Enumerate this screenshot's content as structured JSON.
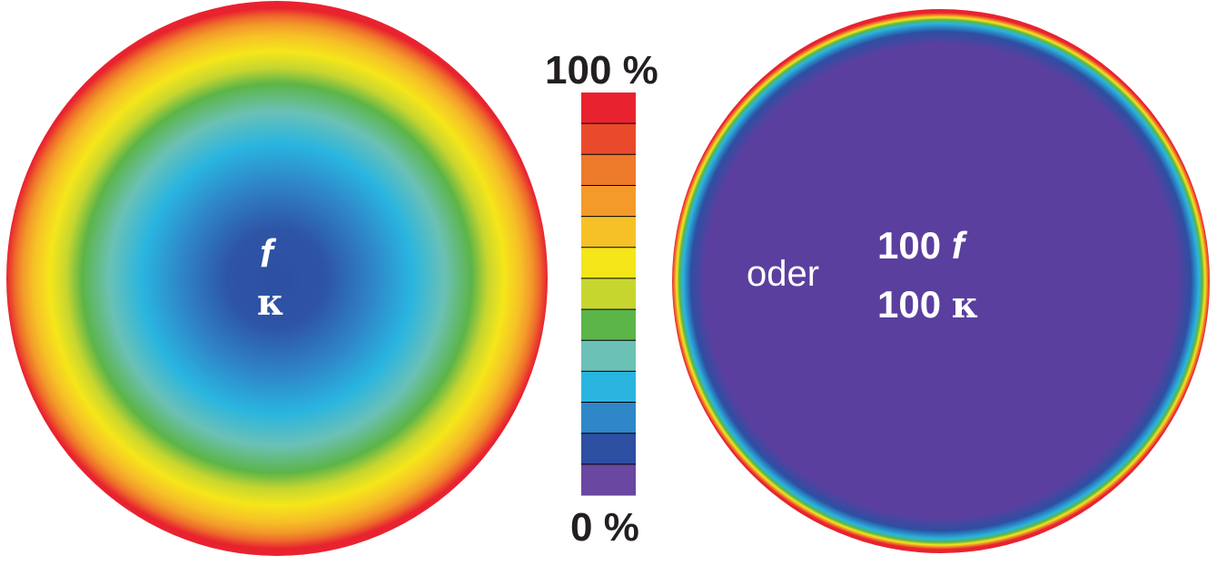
{
  "left_disc": {
    "line1": "f",
    "line2": "κ"
  },
  "right_disc": {
    "word": "oder",
    "line1_number": "100",
    "line1_symbol": "f",
    "line2_number": "100",
    "line2_symbol": "κ"
  },
  "color_scale": {
    "max_label": "100 %",
    "min_label": "0 %",
    "colors": [
      "#e8232f",
      "#ea4a2c",
      "#ee7a2b",
      "#f39a2a",
      "#f6c127",
      "#f5e61a",
      "#c7d62f",
      "#5cb548",
      "#6bc1b5",
      "#29b5e0",
      "#2f87c8",
      "#2d4fa2",
      "#6a47a0"
    ]
  },
  "colors": {
    "label": "#ffffff",
    "scale_text": "#231f20",
    "right_fill": "#5a3f9f"
  }
}
